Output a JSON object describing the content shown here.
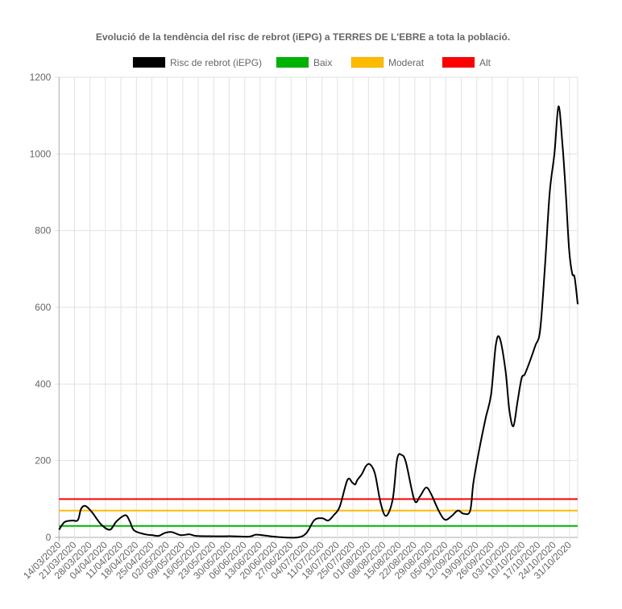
{
  "chart_data": {
    "type": "line",
    "title": "Evolució de la tendència del risc de rebrot (iEPG) a TERRES DE L'EBRE a tota la població.",
    "xlabel": "",
    "ylabel": "",
    "ylim": [
      0,
      1200
    ],
    "yticks": [
      0,
      200,
      400,
      600,
      800,
      1000,
      1200
    ],
    "grid": true,
    "legend_position": "top",
    "x_unit": "days since 14/03/2020",
    "xlim": [
      0,
      235
    ],
    "xtick_labels": [
      "14/03/2020",
      "21/03/2020",
      "28/03/2020",
      "04/04/2020",
      "11/04/2020",
      "18/04/2020",
      "25/04/2020",
      "02/05/2020",
      "09/05/2020",
      "16/05/2020",
      "23/05/2020",
      "30/05/2020",
      "06/06/2020",
      "13/06/2020",
      "20/06/2020",
      "27/06/2020",
      "04/07/2020",
      "11/07/2020",
      "18/07/2020",
      "25/07/2020",
      "01/08/2020",
      "08/08/2020",
      "15/08/2020",
      "22/08/2020",
      "29/08/2020",
      "05/09/2020",
      "12/09/2020",
      "19/09/2020",
      "26/09/2020",
      "03/10/2020",
      "10/10/2020",
      "17/10/2020",
      "24/10/2020",
      "31/10/2020"
    ],
    "series": [
      {
        "name": "Risc de rebrot (iEPG)",
        "color": "#000000",
        "points": [
          [
            0,
            20
          ],
          [
            2.5,
            40
          ],
          [
            6,
            44
          ],
          [
            8.5,
            45
          ],
          [
            10,
            75
          ],
          [
            12,
            82
          ],
          [
            15,
            65
          ],
          [
            19,
            34
          ],
          [
            23,
            20
          ],
          [
            26,
            42
          ],
          [
            30,
            58
          ],
          [
            32,
            42
          ],
          [
            34,
            18
          ],
          [
            39,
            8
          ],
          [
            42,
            6
          ],
          [
            45,
            4
          ],
          [
            48,
            12
          ],
          [
            51,
            14
          ],
          [
            55,
            6
          ],
          [
            59,
            8
          ],
          [
            62,
            4
          ],
          [
            70,
            3
          ],
          [
            79,
            3
          ],
          [
            86,
            2
          ],
          [
            89,
            7
          ],
          [
            93,
            5
          ],
          [
            99,
            1
          ],
          [
            108,
            0
          ],
          [
            112,
            12
          ],
          [
            115.5,
            45
          ],
          [
            119,
            50
          ],
          [
            121.8,
            44
          ],
          [
            124.3,
            58
          ],
          [
            127,
            80
          ],
          [
            130.5,
            150
          ],
          [
            132.7,
            143
          ],
          [
            134,
            138
          ],
          [
            135,
            150
          ],
          [
            137,
            165
          ],
          [
            139,
            187
          ],
          [
            140.8,
            190
          ],
          [
            143,
            165
          ],
          [
            145.5,
            90
          ],
          [
            148,
            56
          ],
          [
            151,
            100
          ],
          [
            153,
            205
          ],
          [
            155,
            215
          ],
          [
            157,
            195
          ],
          [
            160.8,
            97
          ],
          [
            163.3,
            107
          ],
          [
            166,
            130
          ],
          [
            168.2,
            115
          ],
          [
            172,
            67
          ],
          [
            174.7,
            46
          ],
          [
            177.5,
            55
          ],
          [
            180.5,
            70
          ],
          [
            183,
            62
          ],
          [
            186,
            69
          ],
          [
            187.5,
            143
          ],
          [
            190,
            225
          ],
          [
            193,
            310
          ],
          [
            195.5,
            373
          ],
          [
            197.6,
            500
          ],
          [
            199.4,
            520
          ],
          [
            202,
            436
          ],
          [
            203.8,
            330
          ],
          [
            205.6,
            290
          ],
          [
            207.4,
            352
          ],
          [
            209.3,
            415
          ],
          [
            210.7,
            425
          ],
          [
            212.9,
            457
          ],
          [
            215.5,
            500
          ],
          [
            217.7,
            541
          ],
          [
            219.9,
            709
          ],
          [
            222,
            898
          ],
          [
            224.2,
            1003
          ],
          [
            226,
            1124
          ],
          [
            227.8,
            1024
          ],
          [
            229.3,
            898
          ],
          [
            230.8,
            751
          ],
          [
            232.2,
            688
          ],
          [
            233.3,
            678
          ],
          [
            234.7,
            608
          ]
        ]
      },
      {
        "name": "Baix",
        "color": "#00b300",
        "value": 30
      },
      {
        "name": "Moderat",
        "color": "#ffbb00",
        "value": 70
      },
      {
        "name": "Alt",
        "color": "#ff0000",
        "value": 100
      }
    ]
  }
}
